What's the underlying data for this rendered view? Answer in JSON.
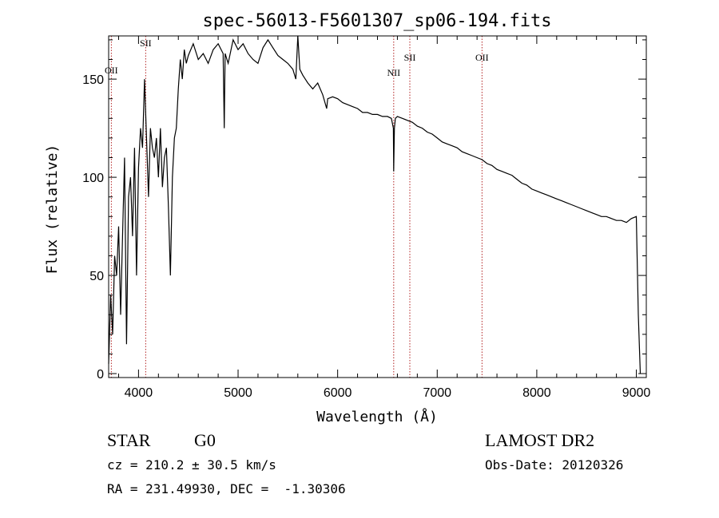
{
  "chart_data": {
    "type": "line",
    "title": "spec-56013-F5601307_sp06-194.fits",
    "xlabel": "Wavelength (Å)",
    "ylabel": "Flux (relative)",
    "xlim": [
      3700,
      9100
    ],
    "ylim": [
      -2,
      172
    ],
    "x_ticks": [
      4000,
      5000,
      6000,
      7000,
      8000,
      9000
    ],
    "y_ticks": [
      0,
      50,
      100,
      150
    ],
    "grid": false,
    "legend": "none",
    "series": [
      {
        "x": [
          3700,
          3720,
          3740,
          3760,
          3780,
          3800,
          3820,
          3840,
          3860,
          3880,
          3900,
          3920,
          3940,
          3960,
          3980,
          4000,
          4020,
          4040,
          4060,
          4080,
          4100,
          4120,
          4140,
          4160,
          4180,
          4200,
          4220,
          4240,
          4260,
          4280,
          4300,
          4320,
          4340,
          4360,
          4380,
          4400,
          4420,
          4440,
          4460,
          4480,
          4500,
          4550,
          4600,
          4650,
          4700,
          4750,
          4800,
          4850,
          4861,
          4870,
          4900,
          4950,
          5000,
          5050,
          5100,
          5150,
          5200,
          5250,
          5300,
          5350,
          5400,
          5450,
          5500,
          5550,
          5580,
          5600,
          5620,
          5650,
          5700,
          5750,
          5800,
          5850,
          5890,
          5900,
          5950,
          6000,
          6050,
          6100,
          6150,
          6200,
          6250,
          6300,
          6350,
          6400,
          6450,
          6500,
          6540,
          6560,
          6563,
          6570,
          6580,
          6600,
          6650,
          6700,
          6750,
          6800,
          6850,
          6900,
          6950,
          7000,
          7050,
          7100,
          7150,
          7200,
          7250,
          7300,
          7350,
          7400,
          7450,
          7500,
          7550,
          7600,
          7650,
          7700,
          7750,
          7800,
          7850,
          7900,
          7950,
          8000,
          8050,
          8100,
          8150,
          8200,
          8250,
          8300,
          8350,
          8400,
          8450,
          8500,
          8550,
          8600,
          8650,
          8700,
          8750,
          8800,
          8850,
          8900,
          8950,
          9000,
          9020,
          9040
        ],
        "y": [
          5,
          40,
          20,
          60,
          50,
          75,
          30,
          70,
          110,
          15,
          90,
          100,
          70,
          115,
          50,
          105,
          125,
          115,
          150,
          120,
          90,
          125,
          115,
          110,
          120,
          100,
          125,
          95,
          110,
          115,
          85,
          50,
          100,
          120,
          125,
          145,
          160,
          150,
          165,
          158,
          162,
          168,
          160,
          163,
          158,
          165,
          168,
          163,
          125,
          163,
          158,
          170,
          165,
          168,
          163,
          160,
          158,
          166,
          170,
          166,
          162,
          160,
          158,
          155,
          150,
          172,
          155,
          152,
          148,
          145,
          148,
          142,
          135,
          140,
          141,
          140,
          138,
          137,
          136,
          135,
          133,
          133,
          132,
          132,
          131,
          131,
          130,
          125,
          103,
          125,
          130,
          131,
          130,
          129,
          128,
          126,
          125,
          123,
          122,
          120,
          118,
          117,
          116,
          115,
          113,
          112,
          111,
          110,
          109,
          107,
          106,
          104,
          103,
          102,
          101,
          99,
          97,
          96,
          94,
          93,
          92,
          91,
          90,
          89,
          88,
          87,
          86,
          85,
          84,
          83,
          82,
          81,
          80,
          80,
          79,
          78,
          78,
          77,
          79,
          80,
          30,
          0
        ]
      }
    ],
    "lines": [
      {
        "label": "OII",
        "x": 3727
      },
      {
        "label": "SII",
        "x": 4072
      },
      {
        "label": "NII",
        "x": 6563
      },
      {
        "label": "SII",
        "x": 6725
      },
      {
        "label": "OII",
        "x": 7450
      }
    ],
    "colors": {
      "spectrum": "#000000",
      "line_markers": "#b22222"
    }
  },
  "info": {
    "object_type": "STAR",
    "subclass": "G0",
    "survey": "LAMOST DR2",
    "cz": "cz = 210.2 ± 30.5 km/s",
    "obs_date": "Obs-Date: 20120326",
    "coords": "RA = 231.49930, DEC =  -1.30306"
  }
}
